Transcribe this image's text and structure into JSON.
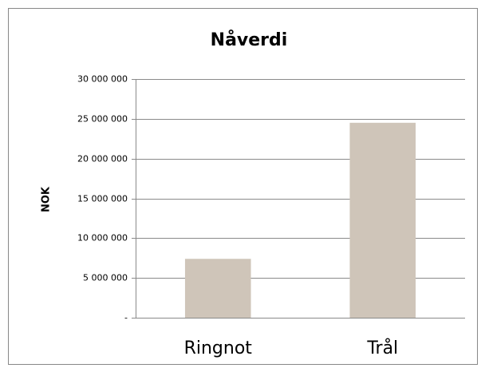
{
  "chart_data": {
    "type": "bar",
    "title": "Nåverdi",
    "y_label": "NOK",
    "categories": [
      "Ringnot",
      "Trål"
    ],
    "values": [
      7400000,
      24500000
    ],
    "color": "#cfc5b9",
    "ylim": [
      0,
      30000000
    ],
    "yticks": [
      {
        "value": 0,
        "label": "-"
      },
      {
        "value": 5000000,
        "label": "5 000 000"
      },
      {
        "value": 10000000,
        "label": "10 000 000"
      },
      {
        "value": 15000000,
        "label": "15 000 000"
      },
      {
        "value": 20000000,
        "label": "20 000 000"
      },
      {
        "value": 25000000,
        "label": "25 000 000"
      },
      {
        "value": 30000000,
        "label": "30 000 000"
      }
    ],
    "grid": true
  }
}
